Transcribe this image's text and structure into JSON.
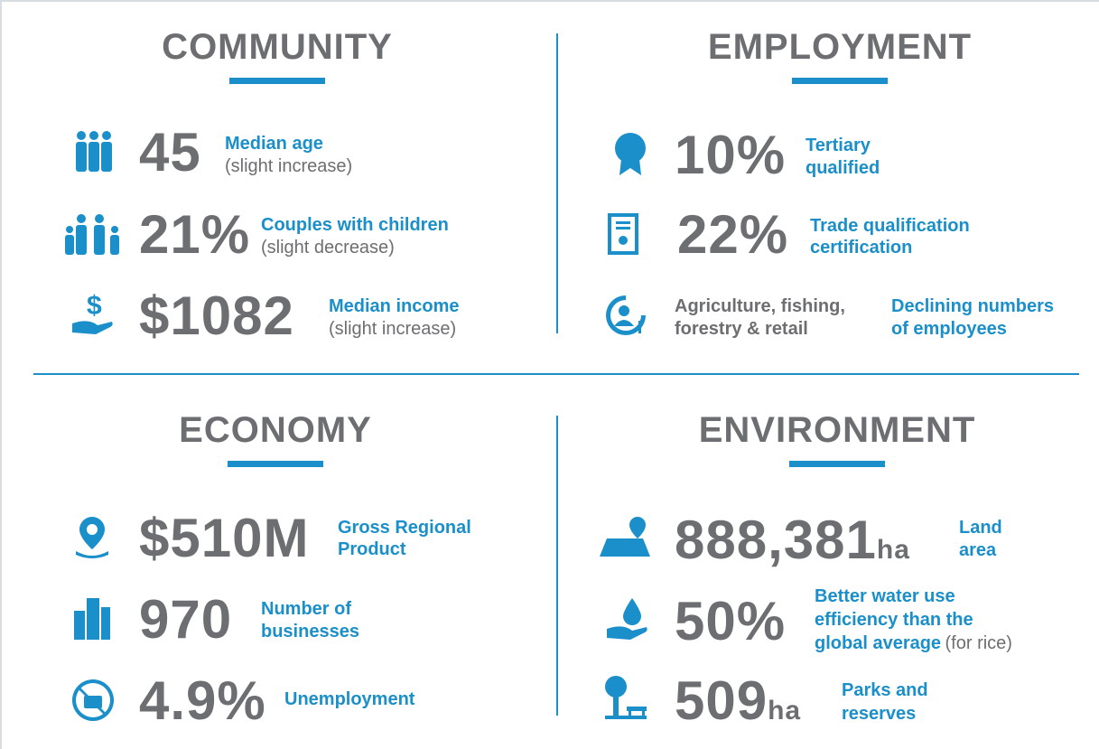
{
  "sections": [
    {
      "title": "COMMUNITY",
      "items": [
        {
          "value": "45",
          "label": "Median age",
          "note": "(slight increase)"
        },
        {
          "value": "21%",
          "label": "Couples with children",
          "note": "(slight decrease)"
        },
        {
          "value": "$1082",
          "label": "Median income",
          "note": "(slight increase)"
        }
      ]
    },
    {
      "title": "EMPLOYMENT",
      "items": [
        {
          "value": "10%",
          "label_lines": [
            "Tertiary",
            "qualified"
          ]
        },
        {
          "value": "22%",
          "label_lines": [
            "Trade qualification",
            "certification"
          ]
        },
        {
          "value_lines": [
            "Agriculture, fishing,",
            "forestry & retail"
          ],
          "label_lines": [
            "Declining numbers",
            "of employees"
          ]
        }
      ]
    },
    {
      "title": "ECONOMY",
      "items": [
        {
          "value": "$510M",
          "label_lines": [
            "Gross Regional",
            "Product"
          ]
        },
        {
          "value": "970",
          "label_lines": [
            "Number of",
            "businesses"
          ]
        },
        {
          "value": "4.9%",
          "label_lines": [
            "Unemployment"
          ]
        }
      ]
    },
    {
      "title": "ENVIRONMENT",
      "items": [
        {
          "value": "888,381",
          "unit": "ha",
          "label_lines": [
            "Land",
            "area"
          ]
        },
        {
          "value": "50%",
          "label_lines": [
            "Better water use",
            "efficiency than the",
            "global average"
          ],
          "note": "(for rice)"
        },
        {
          "value": "509",
          "unit": "ha",
          "label_lines": [
            "Parks and",
            "reserves"
          ]
        }
      ]
    }
  ]
}
